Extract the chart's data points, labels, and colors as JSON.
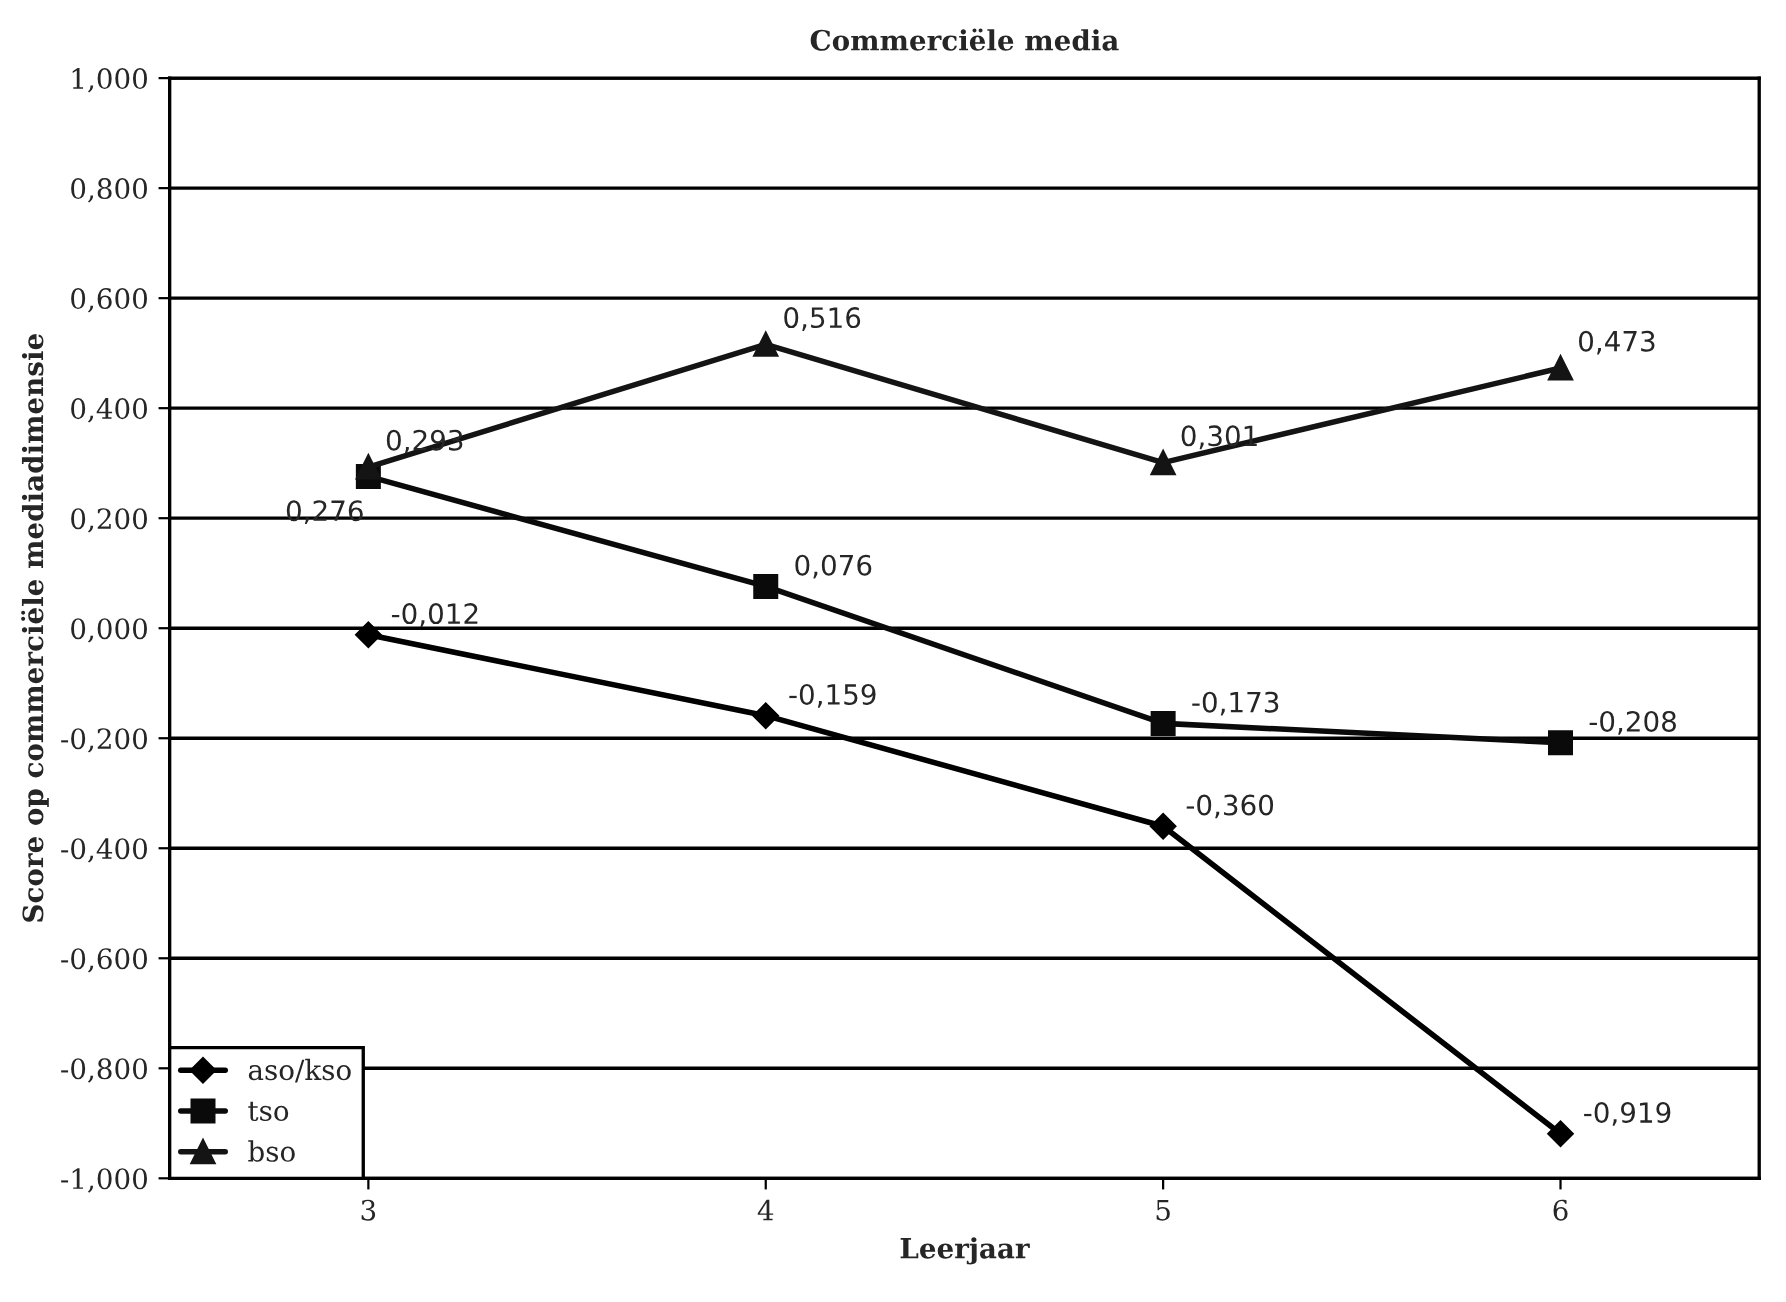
{
  "chart_data": {
    "type": "line",
    "title": "Commerciële media",
    "xlabel": "Leerjaar",
    "ylabel": "Score op commerciële mediadimensie",
    "categories": [
      "3",
      "4",
      "5",
      "6"
    ],
    "series": [
      {
        "name": "aso/kso",
        "color": "#000000",
        "marker": "diamond",
        "values": [
          -0.012,
          -0.159,
          -0.36,
          -0.919
        ],
        "value_labels": [
          "-0,012",
          "-0,159",
          "-0,360",
          "-0,919"
        ]
      },
      {
        "name": "tso",
        "color": "#0a0a0a",
        "marker": "square",
        "values": [
          0.276,
          0.076,
          -0.173,
          -0.208
        ],
        "value_labels": [
          "0,276",
          "0,076",
          "-0,173",
          "-0,208"
        ]
      },
      {
        "name": "bso",
        "color": "#141414",
        "marker": "triangle",
        "values": [
          0.293,
          0.516,
          0.301,
          0.473
        ],
        "value_labels": [
          "0,293",
          "0,516",
          "0,301",
          "0,473"
        ]
      }
    ],
    "ylim": [
      -1.0,
      1.0
    ],
    "yticks": [
      {
        "value": -1.0,
        "label": "-1,000"
      },
      {
        "value": -0.8,
        "label": "-0,800"
      },
      {
        "value": -0.6,
        "label": "-0,600"
      },
      {
        "value": -0.4,
        "label": "-0,400"
      },
      {
        "value": -0.2,
        "label": "-0,200"
      },
      {
        "value": 0.0,
        "label": "0,000"
      },
      {
        "value": 0.2,
        "label": "0,200"
      },
      {
        "value": 0.4,
        "label": "0,400"
      },
      {
        "value": 0.6,
        "label": "0,600"
      },
      {
        "value": 0.8,
        "label": "0,800"
      },
      {
        "value": 1.0,
        "label": "1,000"
      }
    ],
    "grid": "y",
    "legend": "bottom left",
    "line_style": "solid"
  }
}
